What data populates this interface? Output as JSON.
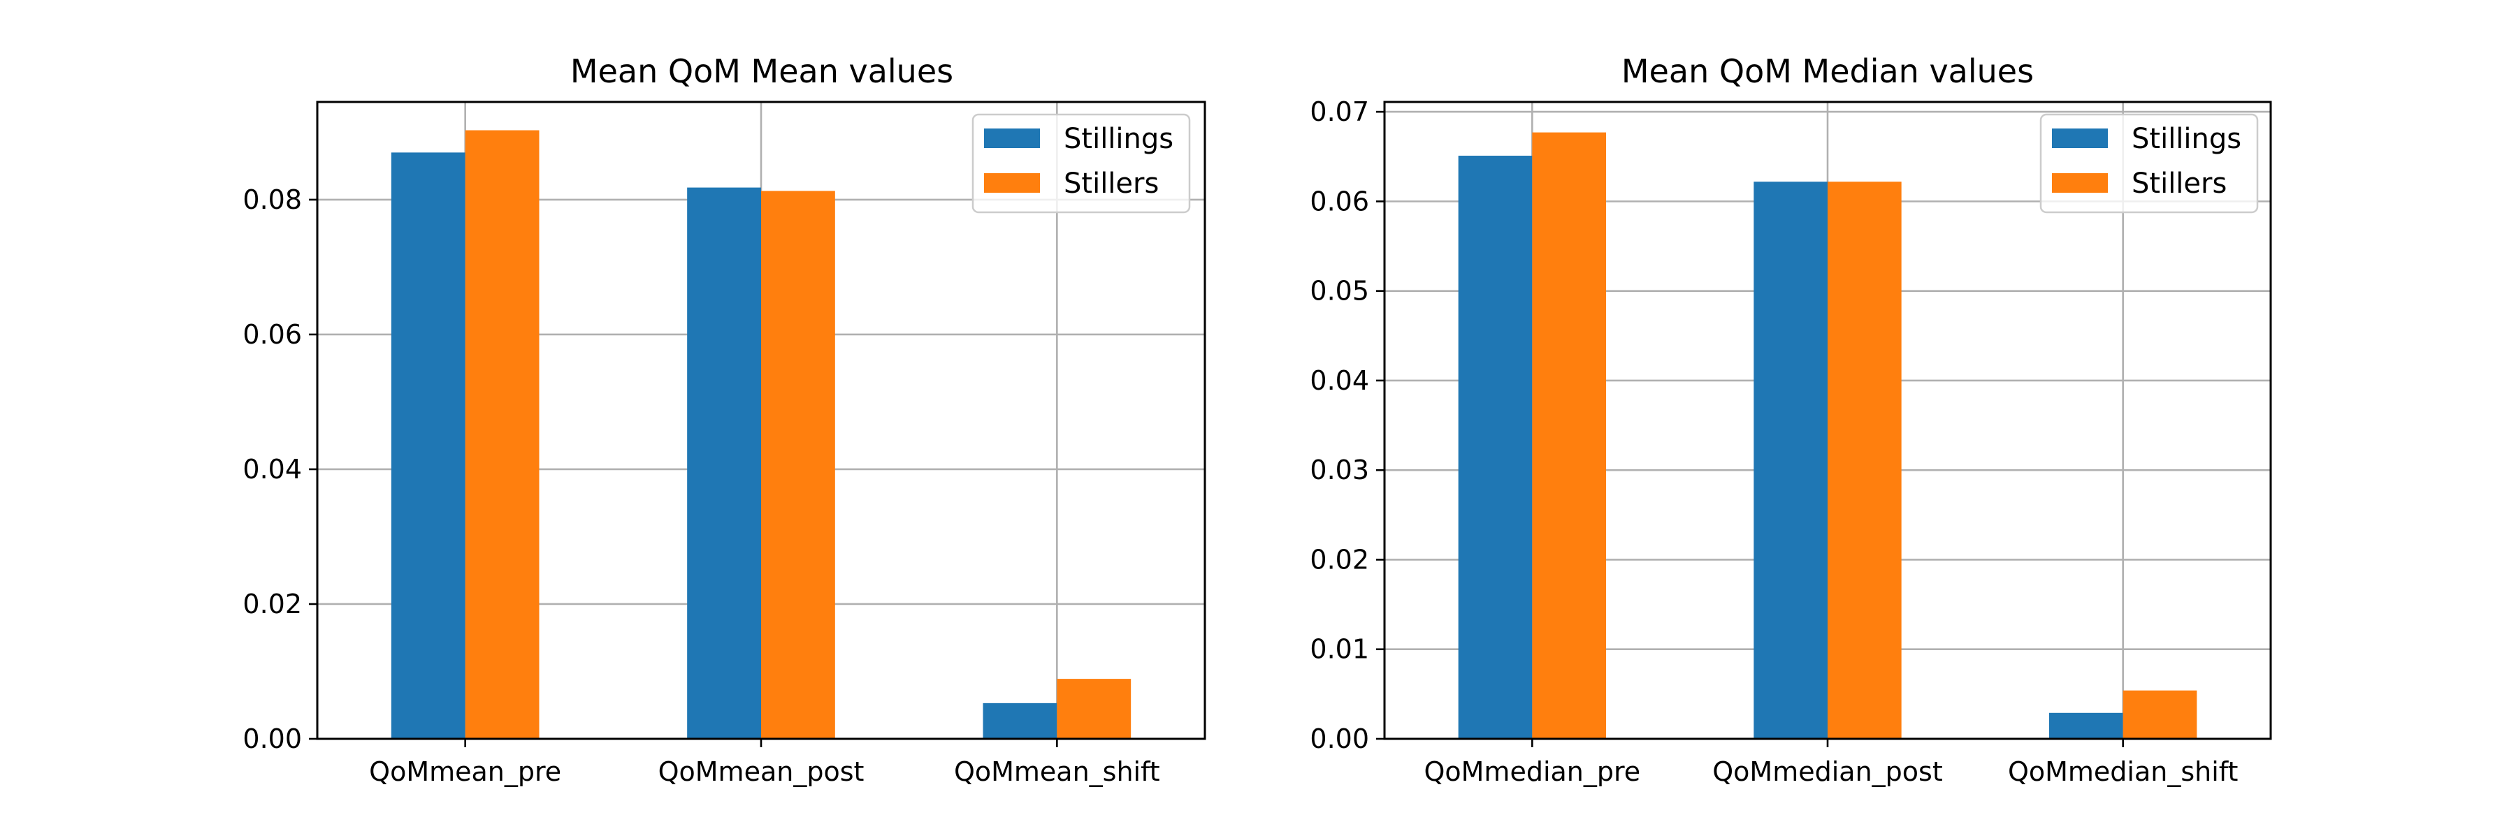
{
  "chart_data": [
    {
      "type": "bar",
      "title": "Mean QoM Mean values",
      "xlabel": "",
      "ylabel": "",
      "categories": [
        "QoMmean_pre",
        "QoMmean_post",
        "QoMmean_shift"
      ],
      "series": [
        {
          "name": "Stillings",
          "color": "#1f77b4",
          "values": [
            0.087,
            0.0818,
            0.0053
          ]
        },
        {
          "name": "Stillers",
          "color": "#ff7f0e",
          "values": [
            0.0903,
            0.0813,
            0.0089
          ]
        }
      ],
      "ylim": [
        0,
        0.0945
      ],
      "yticks": [
        0.0,
        0.02,
        0.04,
        0.06,
        0.08
      ],
      "ytick_labels": [
        "0.00",
        "0.02",
        "0.04",
        "0.06",
        "0.08"
      ],
      "grid": true,
      "legend_position": "top-right"
    },
    {
      "type": "bar",
      "title": "Mean QoM Median values",
      "xlabel": "",
      "ylabel": "",
      "categories": [
        "QoMmedian_pre",
        "QoMmedian_post",
        "QoMmedian_shift"
      ],
      "series": [
        {
          "name": "Stillings",
          "color": "#1f77b4",
          "values": [
            0.0651,
            0.0622,
            0.0029
          ]
        },
        {
          "name": "Stillers",
          "color": "#ff7f0e",
          "values": [
            0.0677,
            0.0622,
            0.0054
          ]
        }
      ],
      "ylim": [
        0,
        0.0711
      ],
      "yticks": [
        0.0,
        0.01,
        0.02,
        0.03,
        0.04,
        0.05,
        0.06,
        0.07
      ],
      "ytick_labels": [
        "0.00",
        "0.01",
        "0.02",
        "0.03",
        "0.04",
        "0.05",
        "0.06",
        "0.07"
      ],
      "grid": true,
      "legend_position": "top-right"
    }
  ]
}
